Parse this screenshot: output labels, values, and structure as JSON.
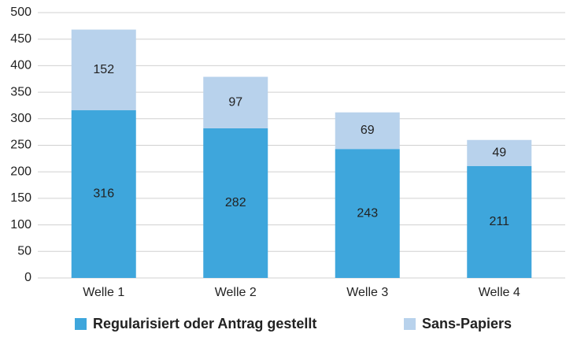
{
  "chart_data": {
    "type": "stacked_bar",
    "categories": [
      "Welle 1",
      "Welle 2",
      "Welle 3",
      "Welle 4"
    ],
    "series": [
      {
        "name": "Regularisiert oder Antrag gestellt",
        "color": "#3ea6dc",
        "values": [
          316,
          282,
          243,
          211
        ]
      },
      {
        "name": "Sans-Papiers",
        "color": "#b8d2ec",
        "values": [
          152,
          97,
          69,
          49
        ]
      }
    ],
    "ylim": [
      0,
      500
    ],
    "yticks": [
      0,
      50,
      100,
      150,
      200,
      250,
      300,
      350,
      400,
      450,
      500
    ],
    "grid": true,
    "legend": "bottom"
  }
}
